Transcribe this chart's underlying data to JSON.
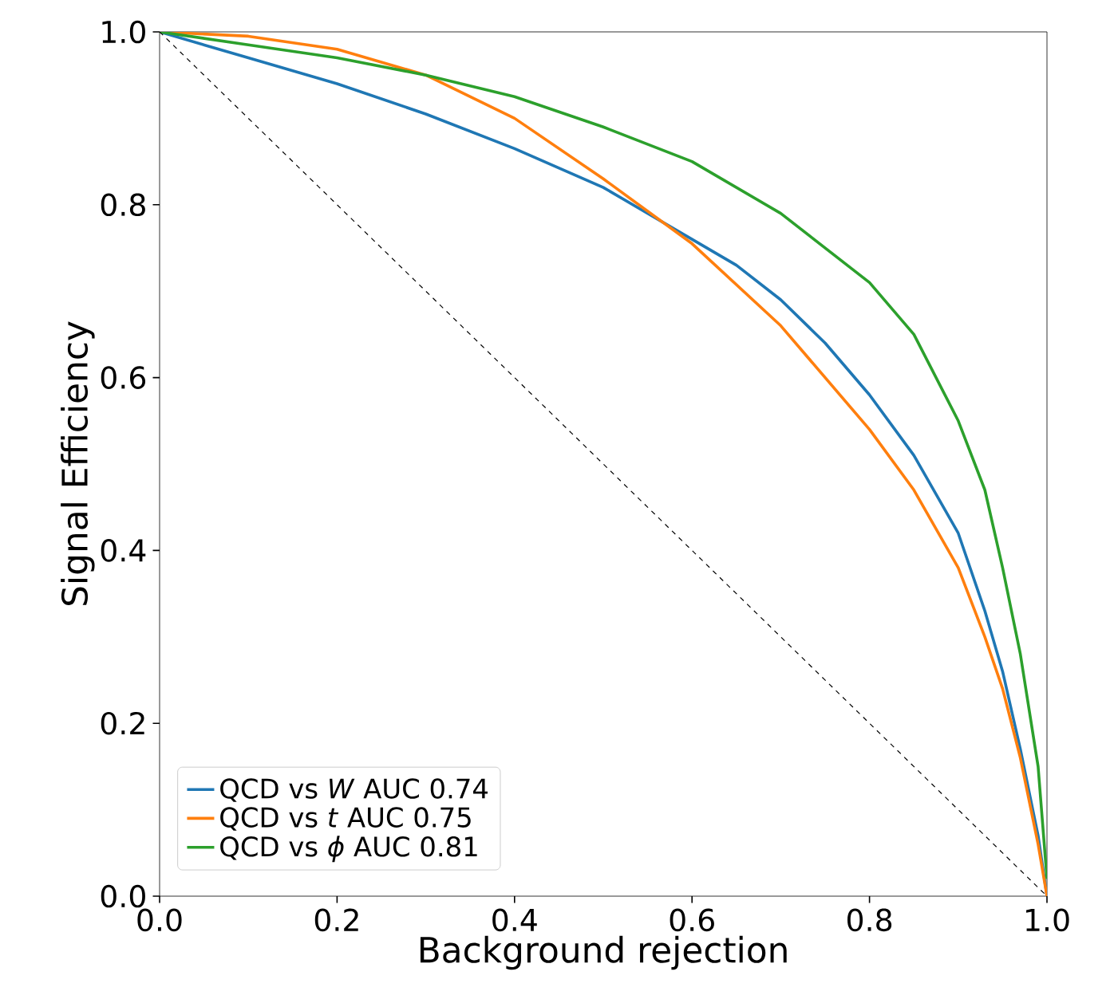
{
  "chart_data": {
    "type": "line",
    "xlabel": "Background rejection",
    "ylabel": "Signal Efficiency",
    "xlim": [
      0,
      1
    ],
    "ylim": [
      0,
      1
    ],
    "xticks": [
      {
        "value": 0,
        "label": "0.0"
      },
      {
        "value": 0.2,
        "label": "0.2"
      },
      {
        "value": 0.4,
        "label": "0.4"
      },
      {
        "value": 0.6,
        "label": "0.6"
      },
      {
        "value": 0.8,
        "label": "0.8"
      },
      {
        "value": 1,
        "label": "1.0"
      }
    ],
    "yticks": [
      {
        "value": 0,
        "label": "0.0"
      },
      {
        "value": 0.2,
        "label": "0.2"
      },
      {
        "value": 0.4,
        "label": "0.4"
      },
      {
        "value": 0.6,
        "label": "0.6"
      },
      {
        "value": 0.8,
        "label": "0.8"
      },
      {
        "value": 1,
        "label": "1.0"
      }
    ],
    "legend": "bottom left",
    "grid": false,
    "series": [
      {
        "name": "QCD vs *W* AUC 0.74",
        "color": "#1f77b4",
        "line_style": "solid",
        "x": [
          0,
          0.1,
          0.2,
          0.3,
          0.4,
          0.5,
          0.6,
          0.65,
          0.7,
          0.75,
          0.8,
          0.85,
          0.9,
          0.93,
          0.95,
          0.97,
          0.99,
          1
        ],
        "values": [
          1,
          0.97,
          0.94,
          0.905,
          0.865,
          0.82,
          0.76,
          0.73,
          0.69,
          0.64,
          0.58,
          0.51,
          0.42,
          0.33,
          0.26,
          0.17,
          0.07,
          0
        ]
      },
      {
        "name": "QCD vs *t* AUC 0.75",
        "color": "#ff7f0e",
        "line_style": "solid",
        "x": [
          0,
          0.1,
          0.2,
          0.3,
          0.4,
          0.5,
          0.6,
          0.7,
          0.8,
          0.85,
          0.9,
          0.93,
          0.95,
          0.97,
          0.99,
          1
        ],
        "values": [
          1,
          0.995,
          0.98,
          0.95,
          0.9,
          0.83,
          0.755,
          0.66,
          0.54,
          0.47,
          0.38,
          0.3,
          0.24,
          0.16,
          0.06,
          0
        ]
      },
      {
        "name": "QCD vs *ϕ* AUC 0.81",
        "color": "#2ca02c",
        "line_style": "solid",
        "x": [
          0,
          0.1,
          0.2,
          0.3,
          0.4,
          0.5,
          0.6,
          0.7,
          0.8,
          0.85,
          0.9,
          0.93,
          0.95,
          0.97,
          0.99,
          1
        ],
        "values": [
          1,
          0.985,
          0.97,
          0.95,
          0.925,
          0.89,
          0.85,
          0.79,
          0.71,
          0.65,
          0.55,
          0.47,
          0.38,
          0.28,
          0.15,
          0.02
        ]
      },
      {
        "color": "#000000",
        "line_style": "dashed",
        "x": [
          0,
          1
        ],
        "values": [
          1,
          0
        ]
      }
    ]
  }
}
